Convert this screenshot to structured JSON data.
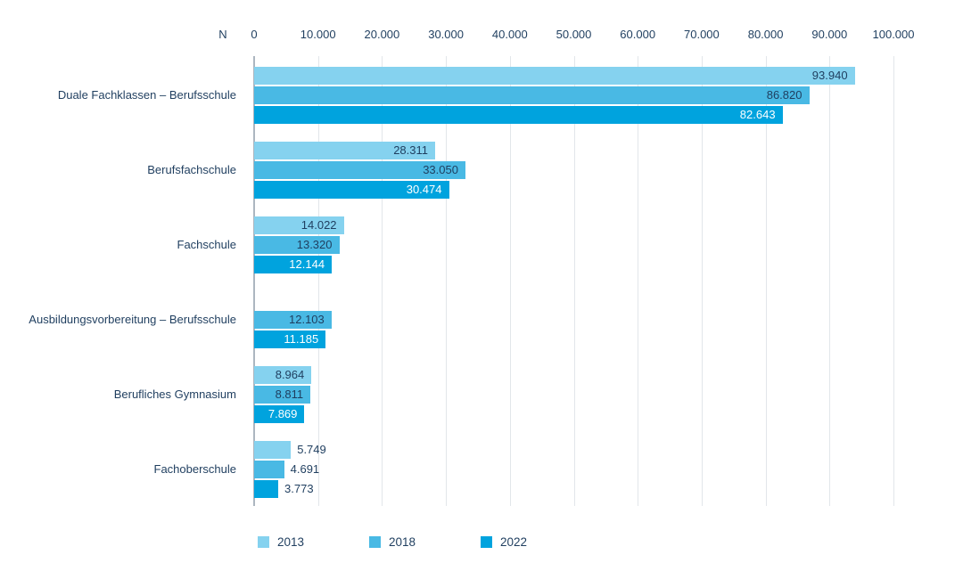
{
  "chart_data": {
    "type": "bar",
    "orientation": "horizontal",
    "unit_label": "N",
    "x_axis": {
      "min": 0,
      "max": 100000,
      "tick_interval": 10000,
      "tick_labels": [
        "0",
        "10.000",
        "20.000",
        "30.000",
        "40.000",
        "50.000",
        "60.000",
        "70.000",
        "80.000",
        "90.000",
        "100.000"
      ]
    },
    "categories": [
      "Duale Fachklassen – Berufsschule",
      "Berufsfachschule",
      "Fachschule",
      "Ausbildungsvorbereitung – Berufsschule",
      "Berufliches Gymnasium",
      "Fachoberschule"
    ],
    "series": [
      {
        "name": "2013",
        "color": "#85D2EF",
        "values": [
          93940,
          28311,
          14022,
          null,
          8964,
          5749
        ],
        "value_labels": [
          "93.940",
          "28.311",
          "14.022",
          null,
          "8.964",
          "5.749"
        ]
      },
      {
        "name": "2018",
        "color": "#49B9E4",
        "values": [
          86820,
          33050,
          13320,
          12103,
          8811,
          4691
        ],
        "value_labels": [
          "86.820",
          "33.050",
          "13.320",
          "12.103",
          "8.811",
          "4.691"
        ]
      },
      {
        "name": "2022",
        "color": "#00A3DE",
        "values": [
          82643,
          30474,
          12144,
          11185,
          7869,
          3773
        ],
        "value_labels": [
          "82.643",
          "30.474",
          "12.144",
          "11.185",
          "7.869",
          "3.773"
        ]
      }
    ],
    "legend": {
      "position": "bottom",
      "entries": [
        "2013",
        "2018",
        "2022"
      ]
    },
    "grid": "vertical-only",
    "styles": {
      "text_color": "#1F3E5F",
      "value_label_on_dark_bar": "#FFFFFF",
      "gridline_color": "#E2E6EA",
      "zero_axis_color": "#ACB6C0"
    }
  }
}
